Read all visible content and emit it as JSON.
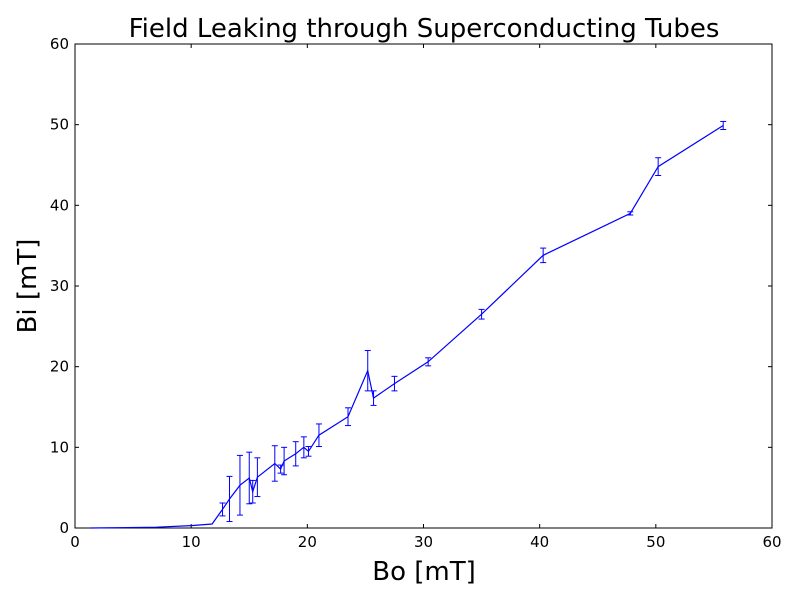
{
  "chart_data": {
    "type": "line",
    "title": "Field Leaking through Superconducting Tubes",
    "xlabel": "Bo [mT]",
    "ylabel": "Bi [mT]",
    "xlim": [
      0,
      60
    ],
    "ylim": [
      0,
      60
    ],
    "xticks": [
      "0",
      "10",
      "20",
      "30",
      "40",
      "50",
      "60"
    ],
    "yticks": [
      "0",
      "10",
      "20",
      "30",
      "40",
      "50",
      "60"
    ],
    "grid": false,
    "series": [
      {
        "color": "#0000ff",
        "points": [
          {
            "x": 1.3,
            "y": 0.0,
            "err": 0.0
          },
          {
            "x": 7.0,
            "y": 0.1,
            "err": 0.0
          },
          {
            "x": 10.0,
            "y": 0.3,
            "err": 0.0
          },
          {
            "x": 11.8,
            "y": 0.5,
            "err": 0.0
          },
          {
            "x": 12.7,
            "y": 2.3,
            "err": 0.8
          },
          {
            "x": 13.3,
            "y": 3.6,
            "err": 2.8
          },
          {
            "x": 14.2,
            "y": 5.3,
            "err": 3.7
          },
          {
            "x": 15.0,
            "y": 6.2,
            "err": 3.2
          },
          {
            "x": 15.3,
            "y": 4.5,
            "err": 1.4
          },
          {
            "x": 15.7,
            "y": 6.3,
            "err": 2.4
          },
          {
            "x": 17.2,
            "y": 8.0,
            "err": 2.2
          },
          {
            "x": 17.7,
            "y": 7.3,
            "err": 0.5
          },
          {
            "x": 18.0,
            "y": 8.3,
            "err": 1.7
          },
          {
            "x": 19.0,
            "y": 9.2,
            "err": 1.5
          },
          {
            "x": 19.7,
            "y": 10.0,
            "err": 1.3
          },
          {
            "x": 20.1,
            "y": 9.5,
            "err": 0.6
          },
          {
            "x": 21.0,
            "y": 11.5,
            "err": 1.4
          },
          {
            "x": 23.5,
            "y": 13.8,
            "err": 1.1
          },
          {
            "x": 25.2,
            "y": 19.5,
            "err": 2.5
          },
          {
            "x": 25.7,
            "y": 16.1,
            "err": 0.9
          },
          {
            "x": 27.5,
            "y": 17.9,
            "err": 0.9
          },
          {
            "x": 30.4,
            "y": 20.6,
            "err": 0.5
          },
          {
            "x": 35.0,
            "y": 26.5,
            "err": 0.6
          },
          {
            "x": 40.3,
            "y": 33.8,
            "err": 0.9
          },
          {
            "x": 47.8,
            "y": 39.0,
            "err": 0.2
          },
          {
            "x": 50.2,
            "y": 44.8,
            "err": 1.1
          },
          {
            "x": 55.8,
            "y": 49.9,
            "err": 0.5
          }
        ]
      }
    ]
  }
}
